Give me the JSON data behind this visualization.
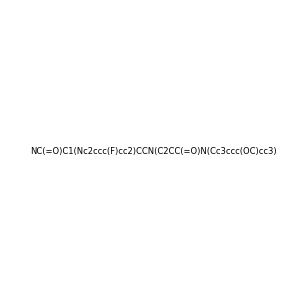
{
  "smiles": "NC(=O)C1(Nc2ccc(F)cc2)CCN(C2CC(=O)N(Cc3ccc(OC)cc3)C2=O)CC1",
  "image_size": 300,
  "background_color": "#e8e8f0"
}
